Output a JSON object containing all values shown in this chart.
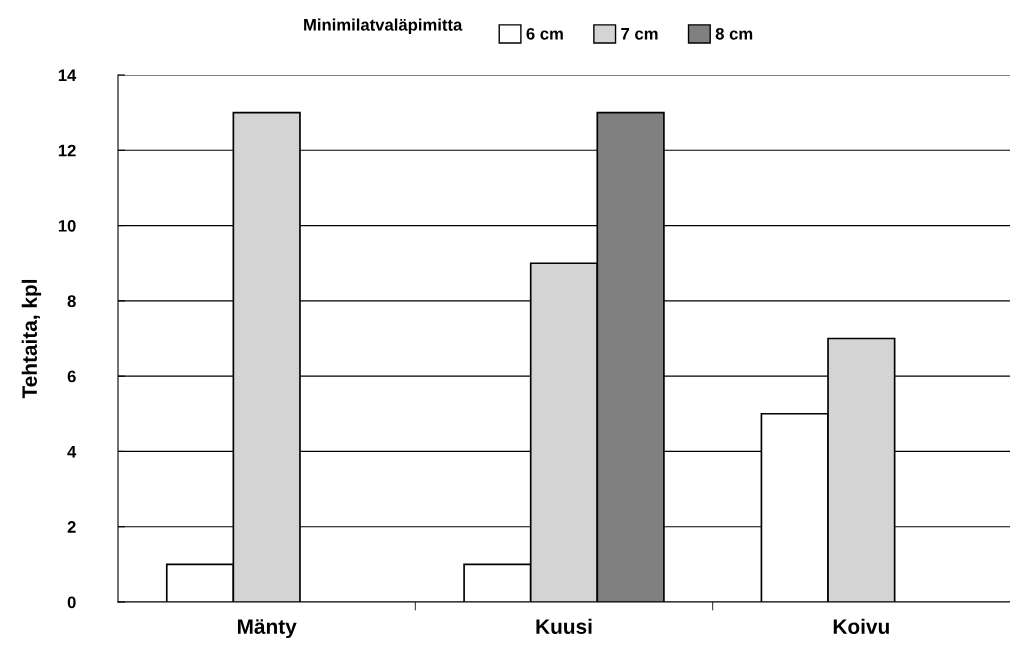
{
  "chart_data": {
    "type": "bar",
    "ylabel": "Tehtaita, kpl",
    "legend_title": "Minimilatvaläpimitta",
    "categories": [
      "Mänty",
      "Kuusi",
      "Koivu"
    ],
    "series": [
      {
        "name": "6 cm",
        "color": "#ffffff",
        "values": [
          1,
          1,
          5
        ]
      },
      {
        "name": "7 cm",
        "color": "#d4d4d4",
        "values": [
          13,
          9,
          7
        ]
      },
      {
        "name": "8 cm",
        "color": "#808080",
        "values": [
          null,
          13,
          null
        ]
      }
    ],
    "ylim": [
      0,
      14
    ],
    "yticks": [
      0,
      2,
      4,
      6,
      8,
      10,
      12,
      14
    ],
    "grid": "y",
    "legend": "top"
  }
}
